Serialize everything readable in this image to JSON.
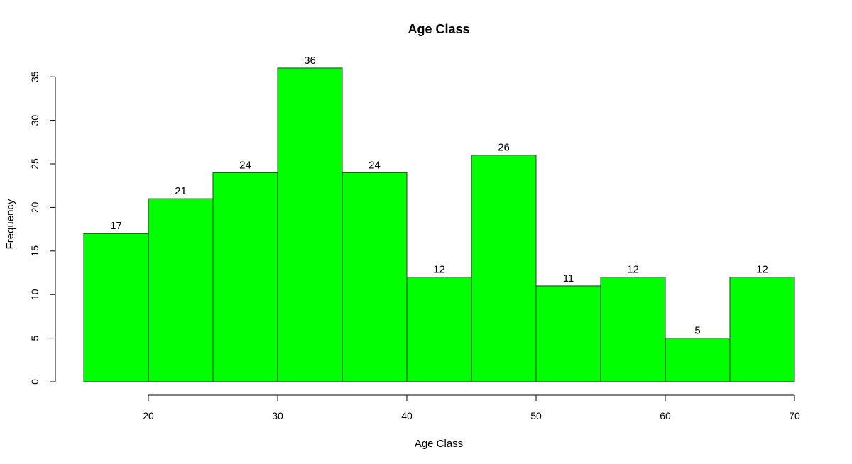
{
  "chart_data": {
    "type": "bar",
    "title": "Age Class",
    "xlabel": "Age Class",
    "ylabel": "Frequency",
    "bar_color": "#00ff00",
    "bins": [
      {
        "start": 15,
        "end": 20,
        "value": 17
      },
      {
        "start": 20,
        "end": 25,
        "value": 21
      },
      {
        "start": 25,
        "end": 30,
        "value": 24
      },
      {
        "start": 30,
        "end": 35,
        "value": 36
      },
      {
        "start": 35,
        "end": 40,
        "value": 24
      },
      {
        "start": 40,
        "end": 45,
        "value": 12
      },
      {
        "start": 45,
        "end": 50,
        "value": 26
      },
      {
        "start": 50,
        "end": 55,
        "value": 11
      },
      {
        "start": 55,
        "end": 60,
        "value": 12
      },
      {
        "start": 60,
        "end": 65,
        "value": 5
      },
      {
        "start": 65,
        "end": 70,
        "value": 12
      }
    ],
    "xlim": [
      15,
      70
    ],
    "ylim": [
      0,
      36
    ],
    "x_ticks": [
      "20",
      "30",
      "40",
      "50",
      "60",
      "70"
    ],
    "y_ticks": [
      "0",
      "5",
      "10",
      "15",
      "20",
      "25",
      "30",
      "35"
    ],
    "grid": false,
    "legend": "none"
  }
}
